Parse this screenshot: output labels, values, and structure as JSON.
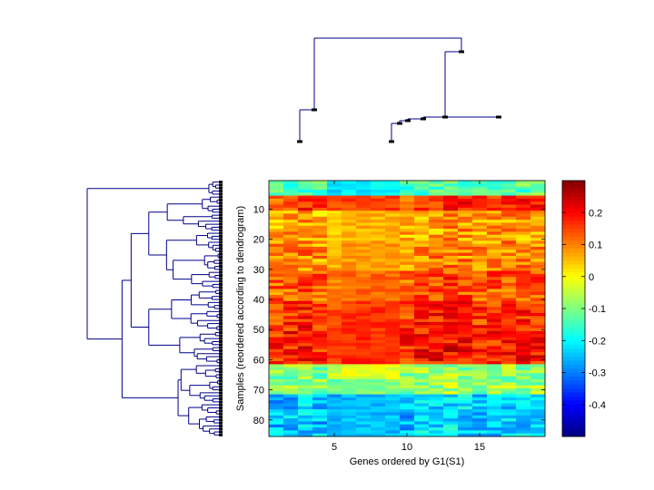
{
  "colors": {
    "dendrogram": "#00008b",
    "leaf_marker": "#000000",
    "background": "#ffffff"
  },
  "chart_data": {
    "type": "heatmap",
    "title": "",
    "xlabel": "Genes ordered by G1(S1)",
    "ylabel": "Samples (reordered according to dendrogram)",
    "n_rows": 85,
    "n_cols": 19,
    "x_ticks": [
      5,
      10,
      15
    ],
    "x_tick_labels": [
      "5",
      "10",
      "15"
    ],
    "y_ticks": [
      10,
      20,
      30,
      40,
      50,
      60,
      70,
      80
    ],
    "y_tick_labels": [
      "10",
      "20",
      "30",
      "40",
      "50",
      "60",
      "70",
      "80"
    ],
    "colorbar": {
      "range": [
        -0.5,
        0.3
      ],
      "ticks": [
        0.2,
        0.1,
        0,
        -0.1,
        -0.2,
        -0.3,
        -0.4
      ],
      "tick_labels": [
        "0.2",
        "0.1",
        "0",
        "-0.1",
        "-0.2",
        "-0.3",
        "-0.4"
      ],
      "colormap": "jet"
    },
    "row_profile": [
      {
        "rows": [
          1,
          5
        ],
        "mean": -0.15
      },
      {
        "rows": [
          6,
          10
        ],
        "mean": 0.15
      },
      {
        "rows": [
          11,
          20
        ],
        "mean": 0.06
      },
      {
        "rows": [
          21,
          30
        ],
        "mean": 0.08
      },
      {
        "rows": [
          31,
          40
        ],
        "mean": 0.12
      },
      {
        "rows": [
          41,
          50
        ],
        "mean": 0.16
      },
      {
        "rows": [
          51,
          61
        ],
        "mean": 0.17
      },
      {
        "rows": [
          62,
          71
        ],
        "mean": -0.1
      },
      {
        "rows": [
          72,
          85
        ],
        "mean": -0.25
      }
    ],
    "col_profile": [
      0.0,
      0.01,
      0.02,
      0.0,
      -0.02,
      0.0,
      0.0,
      0.0,
      0.0,
      0.0,
      0.02,
      0.02,
      0.03,
      0.02,
      0.0,
      0.01,
      0.02,
      0.02,
      0.02
    ],
    "top_dendrogram": "column clustering (2 main clusters)",
    "left_dendrogram": "row clustering of 85 samples"
  }
}
